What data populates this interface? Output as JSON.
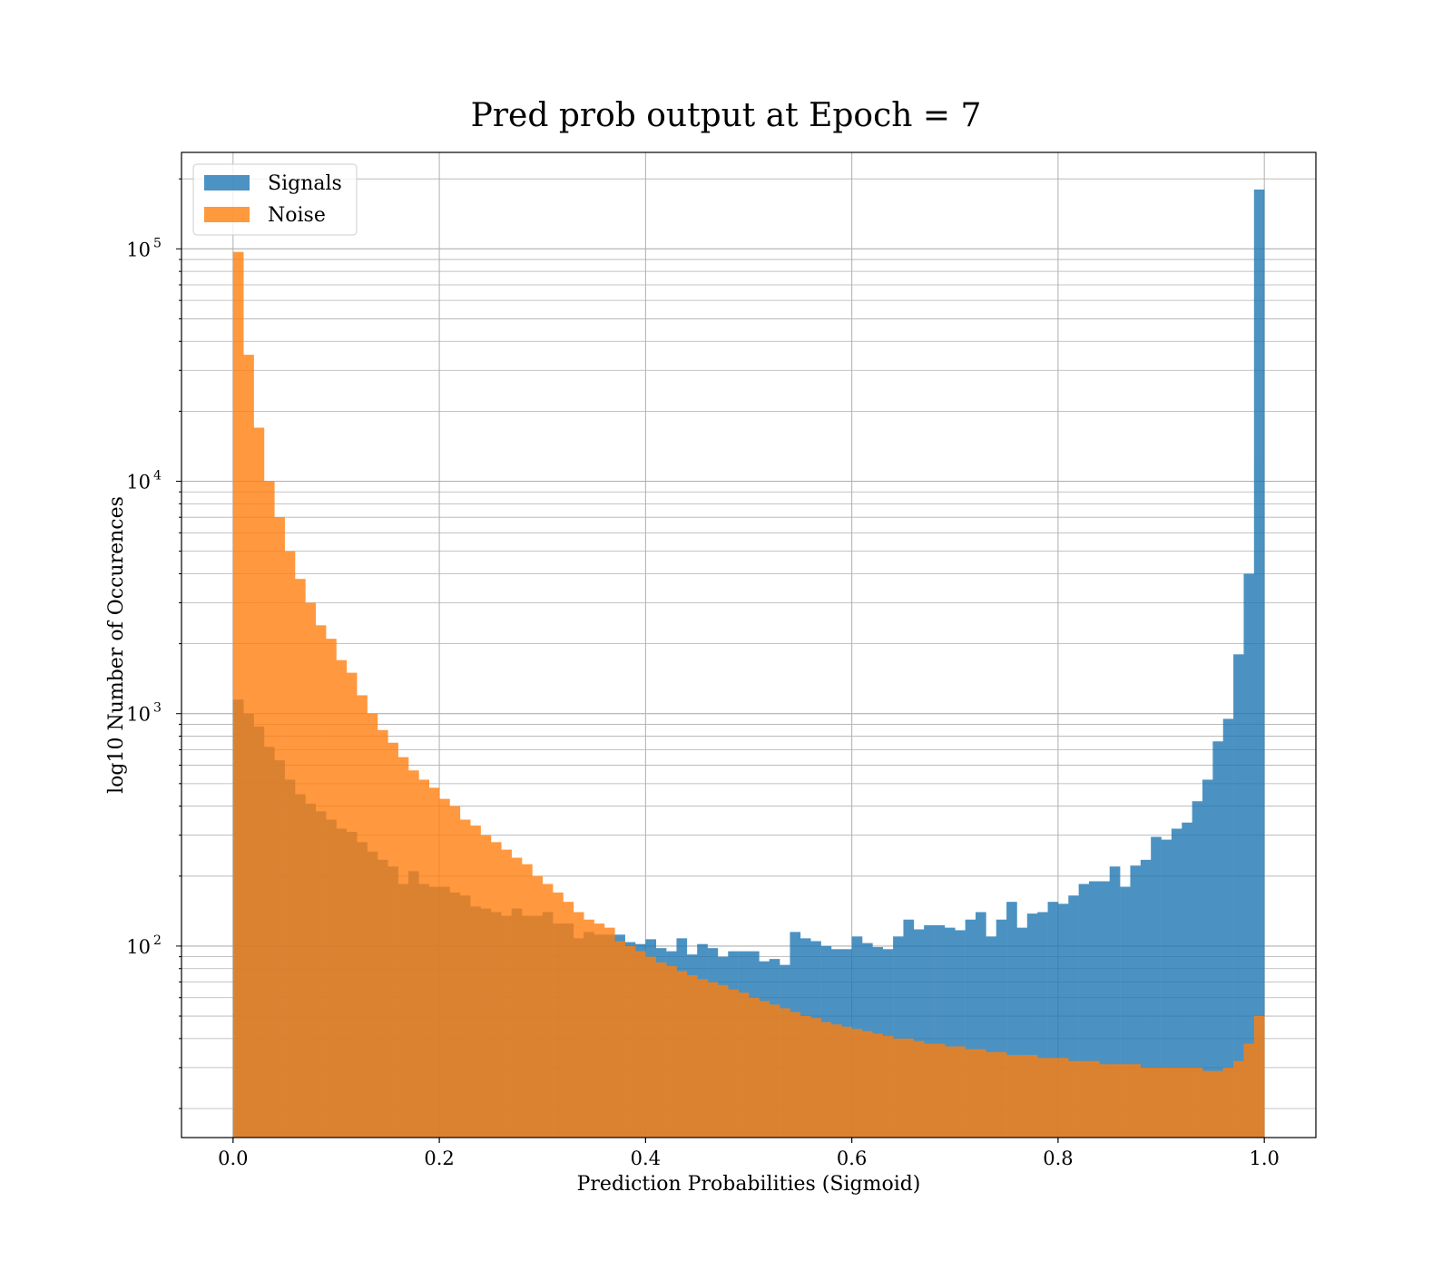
{
  "chart_data": {
    "type": "bar",
    "title": "Pred prob output at Epoch = 7",
    "xlabel": "Prediction Probabilities (Sigmoid)",
    "ylabel": "log10 Number of Occurences",
    "xlim": [
      -0.05,
      1.05
    ],
    "ylim": [
      15,
      260000
    ],
    "yscale": "log",
    "grid": true,
    "legend_position": "top-left",
    "xticks": [
      0.0,
      0.2,
      0.4,
      0.6,
      0.8,
      1.0
    ],
    "xtick_labels": [
      "0.0",
      "0.2",
      "0.4",
      "0.6",
      "0.8",
      "1.0"
    ],
    "yticks": [
      100,
      1000,
      10000,
      100000
    ],
    "ytick_labels": [
      "10",
      "10",
      "10",
      "10"
    ],
    "ytick_exponents": [
      "2",
      "3",
      "4",
      "5"
    ],
    "bins": 100,
    "bin_range": [
      0,
      1
    ],
    "series": [
      {
        "name": "Signals",
        "color": "#1f77b4",
        "values": [
          1150,
          1000,
          880,
          720,
          630,
          520,
          450,
          410,
          380,
          350,
          320,
          310,
          280,
          255,
          235,
          220,
          185,
          210,
          185,
          180,
          180,
          170,
          165,
          148,
          145,
          140,
          135,
          145,
          135,
          135,
          140,
          125,
          125,
          108,
          115,
          112,
          112,
          112,
          104,
          102,
          107,
          98,
          95,
          108,
          92,
          102,
          98,
          90,
          95,
          95,
          95,
          86,
          88,
          83,
          115,
          108,
          105,
          100,
          97,
          97,
          110,
          103,
          99,
          97,
          110,
          130,
          118,
          123,
          123,
          120,
          117,
          130,
          140,
          110,
          130,
          155,
          120,
          138,
          140,
          155,
          152,
          165,
          185,
          190,
          190,
          220,
          180,
          222,
          235,
          295,
          287,
          320,
          340,
          420,
          520,
          760,
          950,
          1800,
          4000,
          180000
        ]
      },
      {
        "name": "Noise",
        "color": "#ff7f0e",
        "values": [
          97000,
          35000,
          17000,
          10000,
          7000,
          5000,
          3800,
          3000,
          2400,
          2100,
          1700,
          1500,
          1200,
          1000,
          850,
          750,
          650,
          570,
          520,
          480,
          430,
          400,
          350,
          330,
          300,
          280,
          260,
          240,
          225,
          200,
          185,
          170,
          155,
          140,
          130,
          125,
          120,
          105,
          100,
          95,
          90,
          85,
          82,
          78,
          75,
          72,
          70,
          68,
          65,
          63,
          60,
          58,
          56,
          54,
          52,
          50,
          49,
          47,
          46,
          45,
          44,
          43,
          42,
          41,
          40,
          40,
          39,
          38,
          38,
          37,
          37,
          36,
          36,
          35,
          35,
          34,
          34,
          34,
          33,
          33,
          33,
          32,
          32,
          32,
          31,
          31,
          31,
          31,
          30,
          30,
          30,
          30,
          30,
          30,
          29,
          29,
          30,
          32,
          38,
          50
        ]
      }
    ]
  }
}
